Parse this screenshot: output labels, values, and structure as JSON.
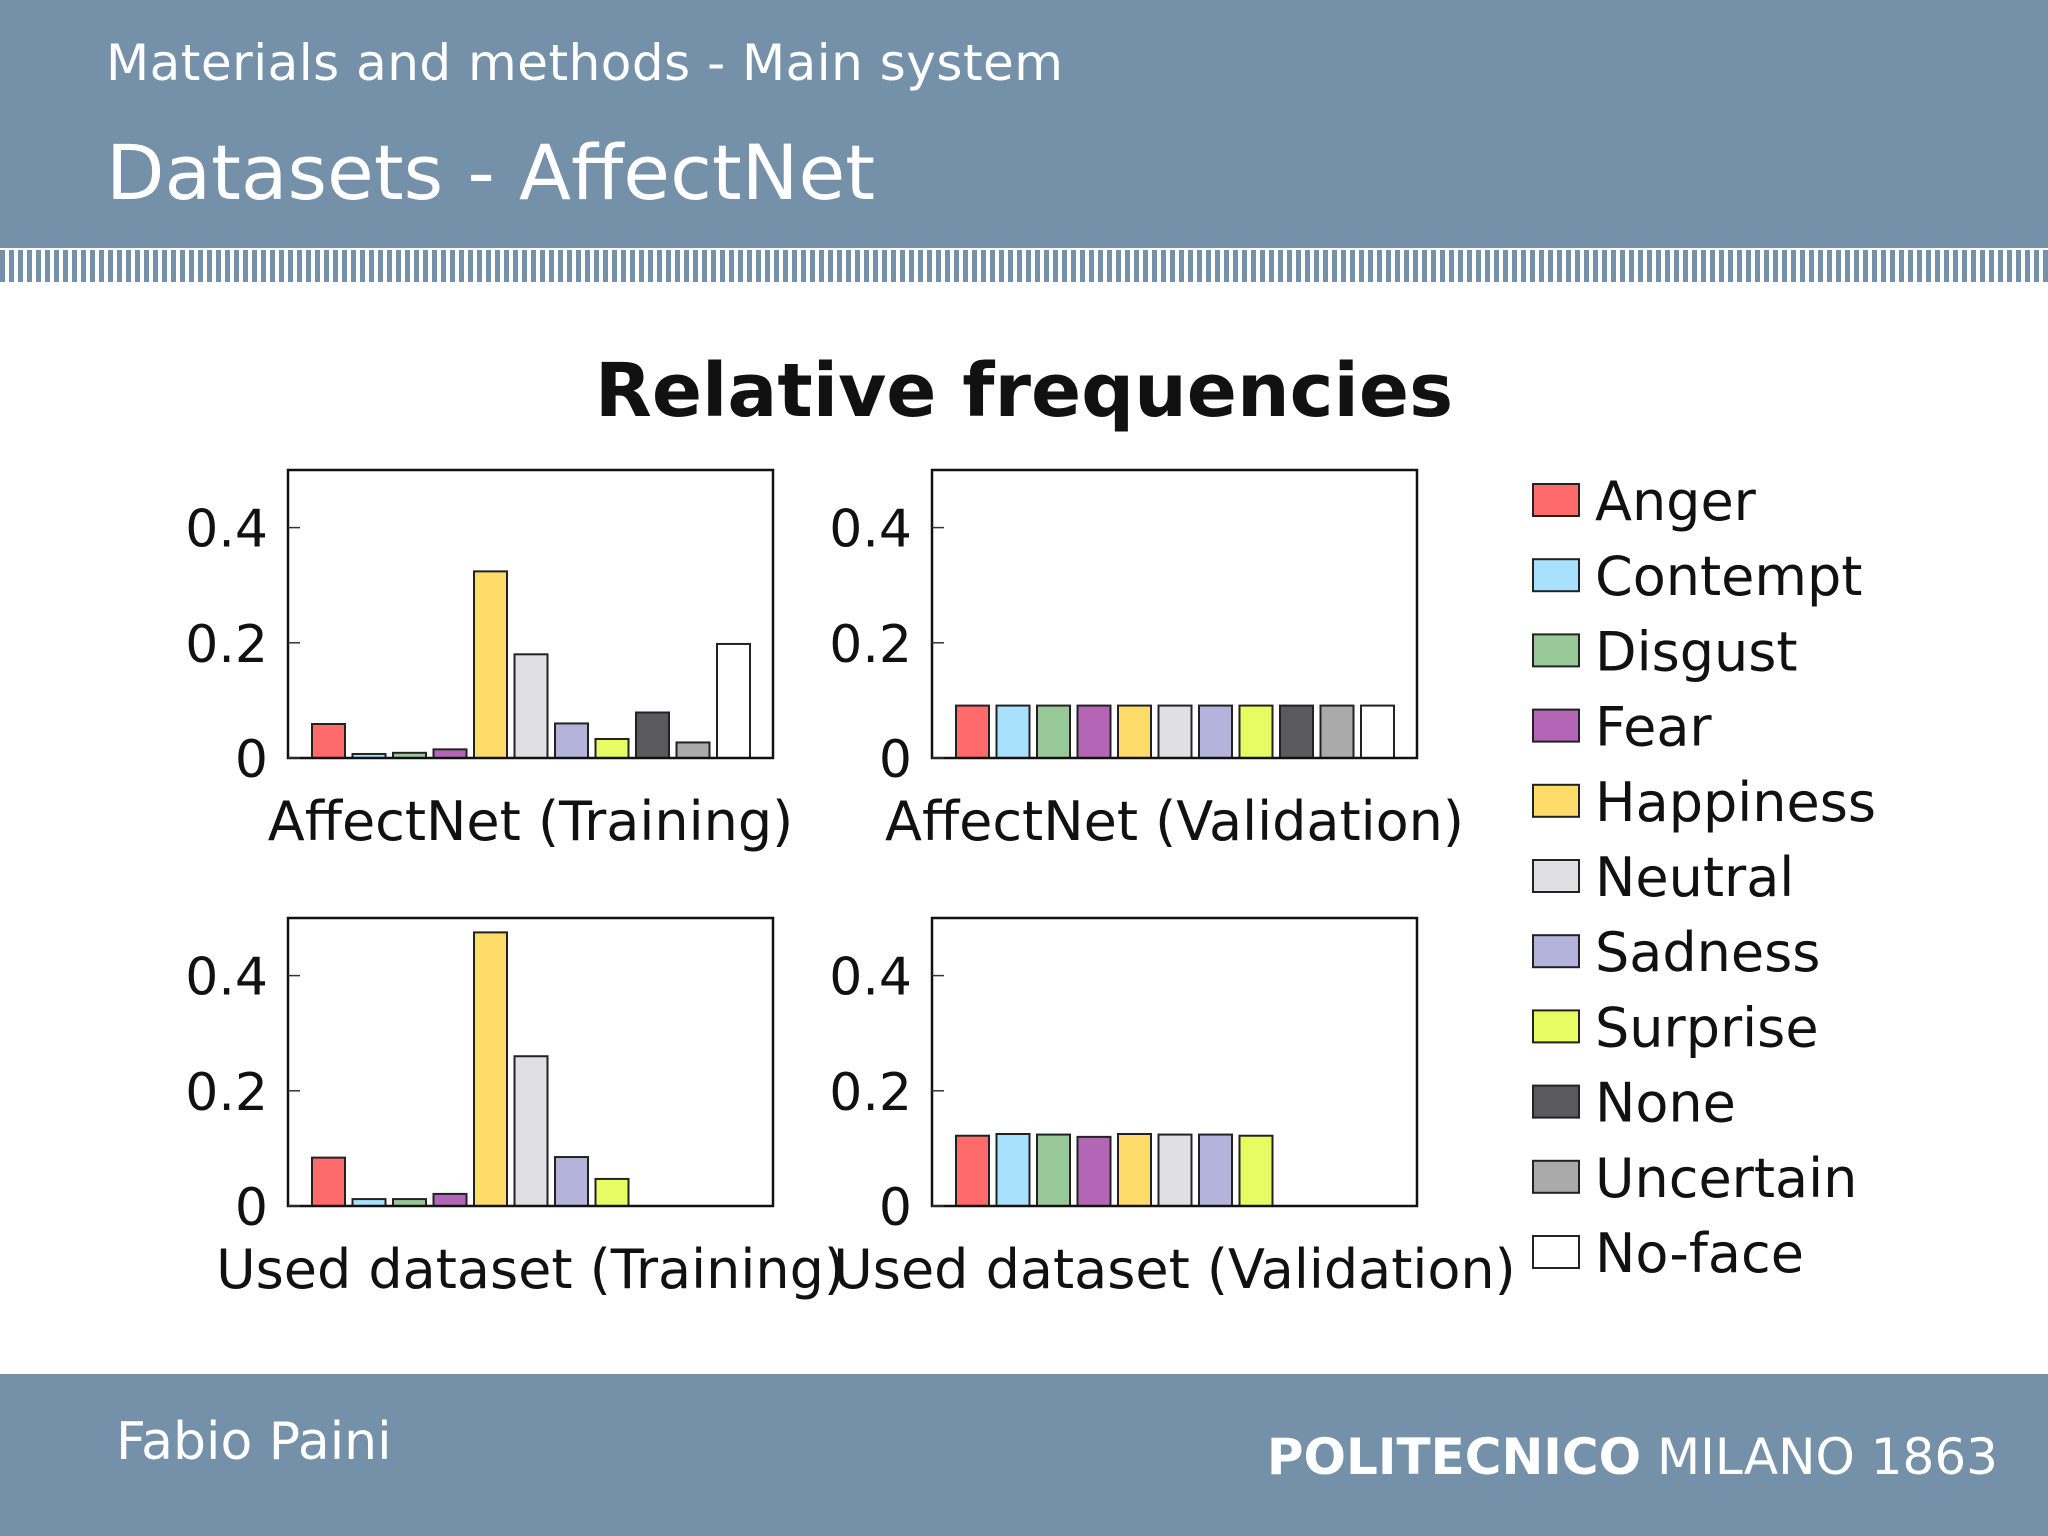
{
  "header": {
    "section_title": "Materials and methods - Main system",
    "frame_title": "Datasets - AffectNet"
  },
  "footer": {
    "author": "Fabio Paini",
    "institution_bold": "POLITECNICO",
    "institution_rest": "MILANO 1863"
  },
  "chart_data": {
    "type": "bar",
    "title": "Relative frequencies",
    "categories": [
      "Anger",
      "Contempt",
      "Disgust",
      "Fear",
      "Happiness",
      "Neutral",
      "Sadness",
      "Surprise",
      "None",
      "Uncertain",
      "No-face"
    ],
    "colors": [
      "#ff6b6b",
      "#a8e1fb",
      "#98c898",
      "#b565b5",
      "#ffdc6a",
      "#e0dfe2",
      "#b4b3dc",
      "#e7fb63",
      "#5a5a5c",
      "#aaaaaa",
      "#ffffff"
    ],
    "ylim": [
      0,
      0.5
    ],
    "yticks": [
      0,
      0.2,
      0.4
    ],
    "ytick_labels": [
      "0",
      "0.2",
      "0.4"
    ],
    "legend_position": "right",
    "grid": false,
    "panels": [
      {
        "label": "AffectNet (Training)",
        "values": [
          0.059,
          0.007,
          0.009,
          0.015,
          0.324,
          0.18,
          0.06,
          0.033,
          0.079,
          0.027,
          0.198
        ]
      },
      {
        "label": "AffectNet (Validation)",
        "values": [
          0.091,
          0.091,
          0.091,
          0.091,
          0.091,
          0.091,
          0.091,
          0.091,
          0.091,
          0.091,
          0.091
        ]
      },
      {
        "label": "Used dataset (Training)",
        "values": [
          0.084,
          0.012,
          0.012,
          0.021,
          0.475,
          0.26,
          0.085,
          0.047,
          0,
          0,
          0
        ]
      },
      {
        "label": "Used dataset (Validation)",
        "values": [
          0.122,
          0.125,
          0.124,
          0.12,
          0.125,
          0.124,
          0.124,
          0.122,
          0,
          0,
          0
        ]
      }
    ]
  }
}
